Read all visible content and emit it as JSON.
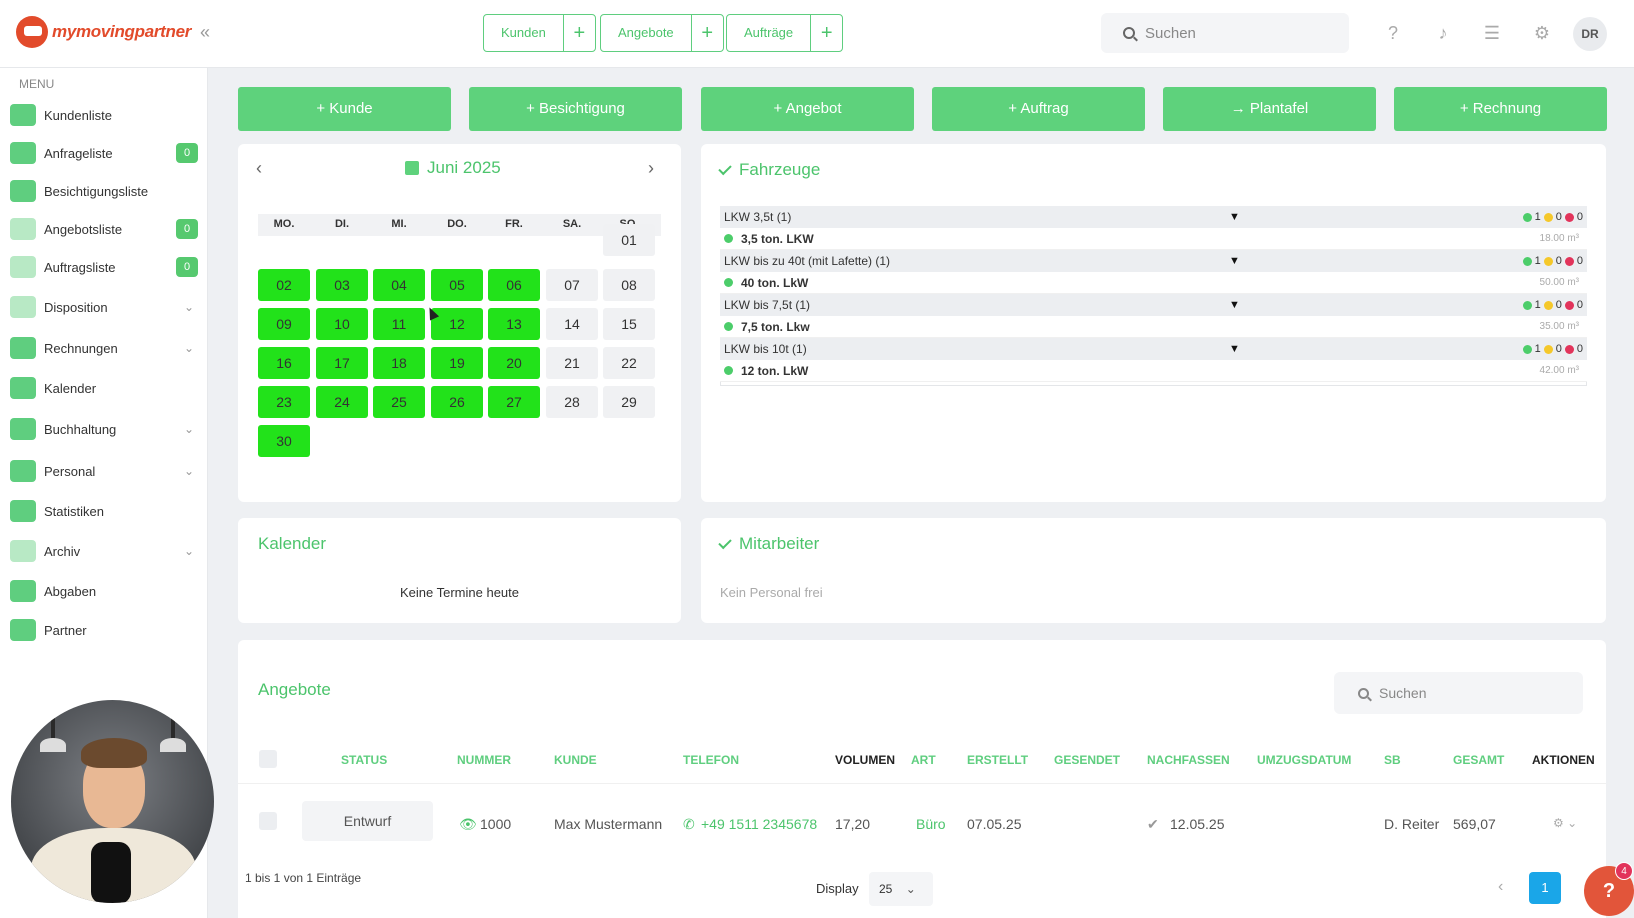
{
  "app": {
    "logo_text": "mymovingpartner",
    "avatar": "DR",
    "collapse_icon": "«"
  },
  "quick_actions": [
    {
      "label": "Kunden",
      "plus": "+"
    },
    {
      "label": "Angebote",
      "plus": "+"
    },
    {
      "label": "Aufträge",
      "plus": "+"
    }
  ],
  "top_search": {
    "placeholder": "Suchen"
  },
  "sidebar": {
    "title": "MENU",
    "items": [
      {
        "label": "Kundenliste",
        "icon": "users-icon"
      },
      {
        "label": "Anfrageliste",
        "icon": "inbox-icon",
        "badge": "0"
      },
      {
        "label": "Besichtigungsliste",
        "icon": "house-icon"
      },
      {
        "label": "Angebotsliste",
        "icon": "document-icon",
        "badge": "0"
      },
      {
        "label": "Auftragsliste",
        "icon": "order-icon",
        "badge": "0"
      },
      {
        "label": "Disposition",
        "icon": "dispatch-icon",
        "chevron": "⌄"
      },
      {
        "label": "Rechnungen",
        "icon": "invoice-icon",
        "chevron": "⌄"
      },
      {
        "label": "Kalender",
        "icon": "calendar-icon"
      },
      {
        "label": "Buchhaltung",
        "icon": "accounting-icon",
        "chevron": "⌄"
      },
      {
        "label": "Personal",
        "icon": "staff-icon",
        "chevron": "⌄"
      },
      {
        "label": "Statistiken",
        "icon": "stats-icon"
      },
      {
        "label": "Archiv",
        "icon": "archive-icon",
        "chevron": "⌄"
      },
      {
        "label": "Abgaben",
        "icon": "share-icon"
      },
      {
        "label": "Partner",
        "icon": "handshake-icon"
      }
    ]
  },
  "actions": [
    {
      "label": "+ Kunde"
    },
    {
      "label": "+ Besichtigung"
    },
    {
      "label": "+ Angebot"
    },
    {
      "label": "+ Auftrag"
    },
    {
      "label": "→ Plantafel"
    },
    {
      "label": "+ Rechnung"
    }
  ],
  "calendar": {
    "month": "Juni 2025",
    "prev": "‹",
    "next": "›",
    "weekdays": [
      "MO.",
      "DI.",
      "MI.",
      "DO.",
      "FR.",
      "SA.",
      "SO."
    ],
    "days": [
      "01",
      "02",
      "03",
      "04",
      "05",
      "06",
      "07",
      "08",
      "09",
      "10",
      "11",
      "12",
      "13",
      "14",
      "15",
      "16",
      "17",
      "18",
      "19",
      "20",
      "21",
      "22",
      "23",
      "24",
      "25",
      "26",
      "27",
      "28",
      "29",
      "30"
    ]
  },
  "vehicles": {
    "title": "Fahrzeuge",
    "groups": [
      {
        "name": "LKW 3,5t (1)",
        "green": "1",
        "yellow": "0",
        "red": "0",
        "item": "3,5 ton. LKW",
        "volume": "18.00 m³"
      },
      {
        "name": "LKW bis zu 40t (mit Lafette) (1)",
        "green": "1",
        "yellow": "0",
        "red": "0",
        "item": "40 ton. LkW",
        "volume": "50.00 m³"
      },
      {
        "name": "LKW bis 7,5t (1)",
        "green": "1",
        "yellow": "0",
        "red": "0",
        "item": "7,5 ton. Lkw",
        "volume": "35.00 m³"
      },
      {
        "name": "LKW bis 10t (1)",
        "green": "1",
        "yellow": "0",
        "red": "0",
        "item": "12 ton. LkW",
        "volume": "42.00 m³"
      }
    ]
  },
  "calendar_card": {
    "title": "Kalender",
    "empty": "Keine Termine heute"
  },
  "staff_card": {
    "title": "Mitarbeiter",
    "empty": "Kein Personal frei"
  },
  "offers": {
    "title": "Angebote",
    "search_placeholder": "Suchen",
    "headers": [
      "STATUS",
      "NUMMER",
      "KUNDE",
      "TELEFON",
      "VOLUMEN",
      "ART",
      "ERSTELLT",
      "GESENDET",
      "NACHFASSEN",
      "UMZUGSDATUM",
      "SB",
      "GESAMT",
      "AKTIONEN"
    ],
    "row": {
      "status": "Entwurf",
      "number": "1000",
      "customer": "Max Mustermann",
      "phone": "+49 1511 2345678",
      "volume": "17,20",
      "type": "Büro",
      "created": "07.05.25",
      "followup": "12.05.25",
      "sb": "D. Reiter",
      "total": "569,07"
    },
    "info": "1 bis 1 von 1 Einträge",
    "display_label": "Display",
    "display_value": "25",
    "page": "1"
  },
  "help": {
    "label": "?",
    "badge": "4"
  },
  "colors": {
    "accent": "#5ed27c",
    "day_green": "#22e21a",
    "page_blue": "#1aa6e8"
  }
}
